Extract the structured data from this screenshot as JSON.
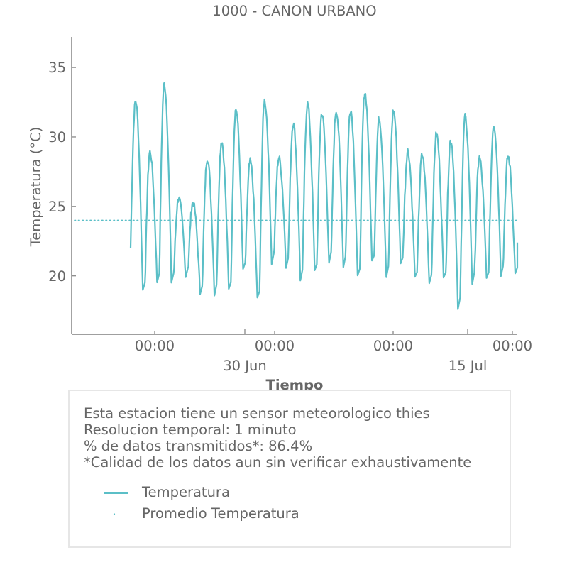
{
  "chart_data": {
    "type": "line",
    "title": "1000 - CANON URBANO",
    "xlabel": "Tiempo",
    "ylabel": "Temperatura (°C)",
    "ylim": [
      15.8,
      37.2
    ],
    "yticks": [
      20,
      25,
      30,
      35
    ],
    "x_minor_tick_labels": [
      "00:00",
      "00:00",
      "00:00",
      "00:00"
    ],
    "x_major_tick_labels": [
      "30 Jun",
      "15 Jul"
    ],
    "grid": false,
    "series": [
      {
        "name": "Temperatura",
        "color": "#5bbfc7",
        "style": "solid",
        "daily_max": [
          32.6,
          28.9,
          33.8,
          25.6,
          25.3,
          28.5,
          29.7,
          32.0,
          28.2,
          32.6,
          28.5,
          31.0,
          32.4,
          31.7,
          31.9,
          32.0,
          33.2,
          31.3,
          31.9,
          29.0,
          28.7,
          30.2,
          29.8,
          31.4,
          28.5,
          30.9,
          28.6
        ],
        "daily_min": [
          19.0,
          19.6,
          19.6,
          20.0,
          18.8,
          18.8,
          19.0,
          20.3,
          18.3,
          21.0,
          20.8,
          19.8,
          20.3,
          21.0,
          20.8,
          19.8,
          21.0,
          20.0,
          20.8,
          19.8,
          19.5,
          19.8,
          17.7,
          19.5,
          19.8,
          20.2,
          20.1
        ]
      },
      {
        "name": "Promedio Temperatura",
        "color": "#5bbfc7",
        "style": "dotted",
        "value": 24.0
      }
    ]
  },
  "info": {
    "line1": "Esta estacion tiene un sensor meteorologico thies",
    "line2": "Resolucion temporal: 1 minuto",
    "line3": "% de datos transmitidos*: 86.4%",
    "line4": "*Calidad de los datos aun sin verificar exhaustivamente"
  },
  "legend": {
    "temperatura": "Temperatura",
    "promedio": "Promedio Temperatura"
  }
}
